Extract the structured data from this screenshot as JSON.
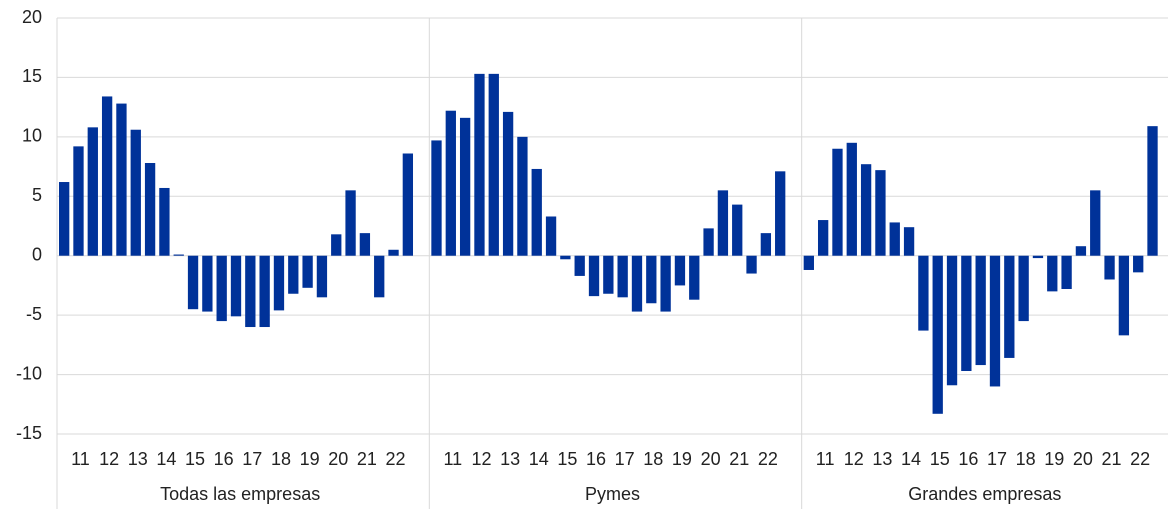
{
  "chart_data": {
    "type": "bar",
    "categories": [
      null,
      "11",
      null,
      "12",
      null,
      "13",
      null,
      "14",
      null,
      "15",
      null,
      "16",
      null,
      "17",
      null,
      "18",
      null,
      "19",
      null,
      "20",
      null,
      "21",
      null,
      "22",
      null,
      null
    ],
    "panels": [
      {
        "label": "Todas las empresas",
        "values": [
          6.2,
          9.2,
          10.8,
          13.4,
          12.8,
          10.6,
          7.8,
          5.7,
          0.1,
          -4.5,
          -4.7,
          -5.5,
          -5.1,
          -6.0,
          -6.0,
          -4.6,
          -3.2,
          -2.7,
          -3.5,
          1.8,
          5.5,
          1.9,
          -3.5,
          0.5,
          8.6,
          null
        ]
      },
      {
        "label": "Pymes",
        "values": [
          9.7,
          12.2,
          11.6,
          15.3,
          15.3,
          12.1,
          10.0,
          7.3,
          3.3,
          -0.3,
          -1.7,
          -3.4,
          -3.2,
          -3.5,
          -4.7,
          -4.0,
          -4.7,
          -2.5,
          -3.7,
          2.3,
          5.5,
          4.3,
          -1.5,
          1.9,
          7.1,
          null
        ]
      },
      {
        "label": "Grandes empresas",
        "values": [
          -1.2,
          3.0,
          9.0,
          9.5,
          7.7,
          7.2,
          2.8,
          2.4,
          -6.3,
          -13.3,
          -10.9,
          -9.7,
          -9.2,
          -11.0,
          -8.6,
          -5.5,
          -0.2,
          -3.0,
          -2.8,
          0.8,
          5.5,
          -2.0,
          -6.7,
          -1.4,
          10.9,
          null
        ]
      }
    ],
    "color": "#003299",
    "ylim": [
      -15,
      20
    ],
    "yticks": [
      -15,
      -10,
      -5,
      0,
      5,
      10,
      15,
      20
    ],
    "grid": true
  }
}
